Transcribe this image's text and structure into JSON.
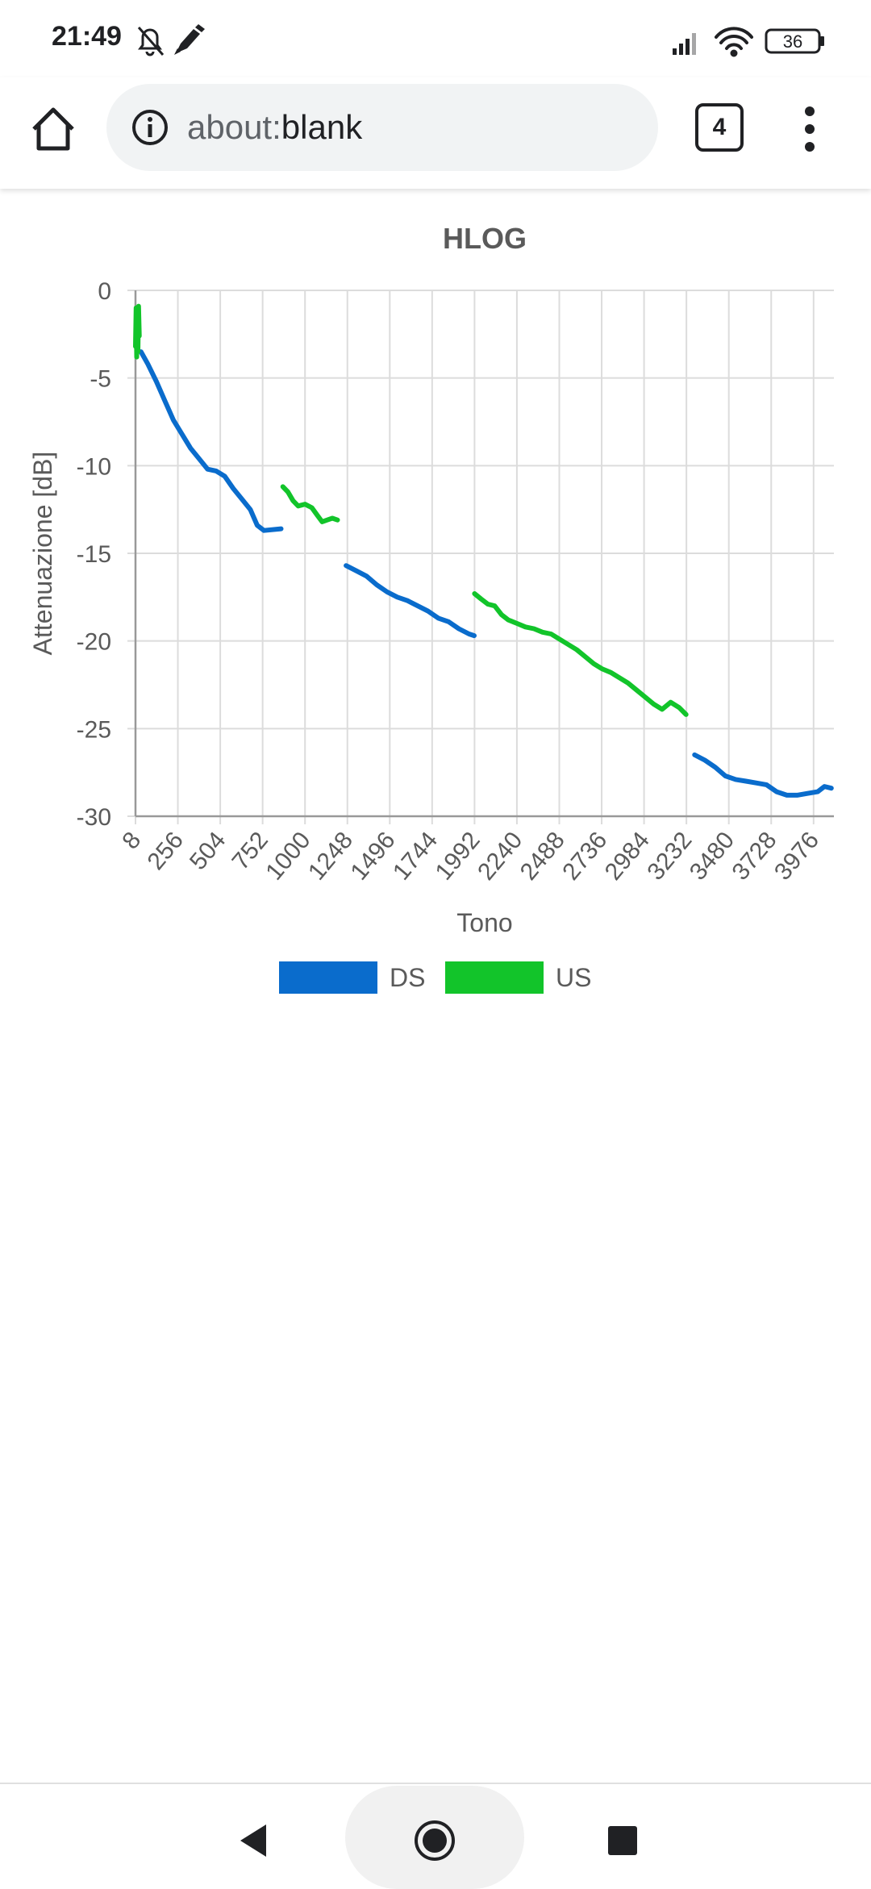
{
  "status_bar": {
    "time": "21:49",
    "icons_left": [
      "notifications-muted-icon",
      "pen-icon"
    ],
    "icons_right": [
      "signal-icon",
      "wifi-icon",
      "battery-icon"
    ],
    "battery_level": "36"
  },
  "browser": {
    "url_scheme": "about:",
    "url_host": "blank",
    "tab_count": "4",
    "icons": [
      "home-icon",
      "info-icon",
      "tabs-icon",
      "more-vert-icon"
    ]
  },
  "navigation": {
    "icons": [
      "back-icon",
      "home-circle-icon",
      "recents-icon"
    ]
  },
  "colors": {
    "ds": "#0a6ccc",
    "us": "#12c42a",
    "grid": "#dcdcdc",
    "axis": "#999999",
    "text": "#5a5a5a"
  },
  "chart_data": {
    "type": "line",
    "title": "HLOG",
    "xlabel": "Tono",
    "ylabel": "Attenuazione [dB]",
    "xlim": [
      8,
      4095
    ],
    "ylim": [
      -30,
      0
    ],
    "x_ticks": [
      "8",
      "256",
      "504",
      "752",
      "1000",
      "1248",
      "1496",
      "1744",
      "1992",
      "2240",
      "2488",
      "2736",
      "2984",
      "3232",
      "3480",
      "3728",
      "3976"
    ],
    "y_ticks": [
      "0",
      "-5",
      "-10",
      "-15",
      "-20",
      "-25",
      "-30"
    ],
    "grid": true,
    "legend_position": "bottom",
    "series": [
      {
        "name": "DS",
        "segments": [
          [
            [
              40,
              -3.5
            ],
            [
              80,
              -4.2
            ],
            [
              130,
              -5.2
            ],
            [
              180,
              -6.3
            ],
            [
              230,
              -7.4
            ],
            [
              280,
              -8.2
            ],
            [
              330,
              -9.0
            ],
            [
              380,
              -9.6
            ],
            [
              430,
              -10.2
            ],
            [
              480,
              -10.3
            ],
            [
              530,
              -10.6
            ],
            [
              580,
              -11.3
            ],
            [
              630,
              -11.9
            ],
            [
              680,
              -12.5
            ],
            [
              720,
              -13.4
            ],
            [
              760,
              -13.7
            ],
            [
              860,
              -13.6
            ]
          ],
          [
            [
              1240,
              -15.7
            ],
            [
              1300,
              -16.0
            ],
            [
              1360,
              -16.3
            ],
            [
              1420,
              -16.8
            ],
            [
              1480,
              -17.2
            ],
            [
              1540,
              -17.5
            ],
            [
              1600,
              -17.7
            ],
            [
              1660,
              -18.0
            ],
            [
              1720,
              -18.3
            ],
            [
              1780,
              -18.7
            ],
            [
              1840,
              -18.9
            ],
            [
              1900,
              -19.3
            ],
            [
              1960,
              -19.6
            ],
            [
              1990,
              -19.7
            ]
          ],
          [
            [
              3280,
              -26.5
            ],
            [
              3340,
              -26.8
            ],
            [
              3400,
              -27.2
            ],
            [
              3460,
              -27.7
            ],
            [
              3520,
              -27.9
            ],
            [
              3580,
              -28.0
            ],
            [
              3640,
              -28.1
            ],
            [
              3700,
              -28.2
            ],
            [
              3760,
              -28.6
            ],
            [
              3820,
              -28.8
            ],
            [
              3880,
              -28.8
            ],
            [
              3940,
              -28.7
            ],
            [
              4000,
              -28.6
            ],
            [
              4040,
              -28.3
            ],
            [
              4080,
              -28.4
            ]
          ]
        ]
      },
      {
        "name": "US",
        "segments": [
          [
            [
              8,
              -3.2
            ],
            [
              12,
              -1.0
            ],
            [
              15,
              -3.8
            ],
            [
              18,
              -1.0
            ],
            [
              22,
              -3.5
            ],
            [
              26,
              -0.9
            ],
            [
              30,
              -2.6
            ]
          ],
          [
            [
              870,
              -11.2
            ],
            [
              900,
              -11.5
            ],
            [
              930,
              -12.0
            ],
            [
              960,
              -12.3
            ],
            [
              1000,
              -12.2
            ],
            [
              1040,
              -12.4
            ],
            [
              1070,
              -12.8
            ],
            [
              1100,
              -13.2
            ],
            [
              1130,
              -13.1
            ],
            [
              1160,
              -13.0
            ],
            [
              1190,
              -13.1
            ]
          ],
          [
            [
              1992,
              -17.3
            ],
            [
              2030,
              -17.6
            ],
            [
              2070,
              -17.9
            ],
            [
              2110,
              -18.0
            ],
            [
              2150,
              -18.5
            ],
            [
              2190,
              -18.8
            ],
            [
              2240,
              -19.0
            ],
            [
              2290,
              -19.2
            ],
            [
              2340,
              -19.3
            ],
            [
              2390,
              -19.5
            ],
            [
              2440,
              -19.6
            ],
            [
              2490,
              -19.9
            ],
            [
              2540,
              -20.2
            ],
            [
              2590,
              -20.5
            ],
            [
              2640,
              -20.9
            ],
            [
              2690,
              -21.3
            ],
            [
              2740,
              -21.6
            ],
            [
              2790,
              -21.8
            ],
            [
              2840,
              -22.1
            ],
            [
              2890,
              -22.4
            ],
            [
              2940,
              -22.8
            ],
            [
              2990,
              -23.2
            ],
            [
              3040,
              -23.6
            ],
            [
              3090,
              -23.9
            ],
            [
              3140,
              -23.5
            ],
            [
              3190,
              -23.8
            ],
            [
              3230,
              -24.2
            ]
          ]
        ]
      }
    ]
  }
}
